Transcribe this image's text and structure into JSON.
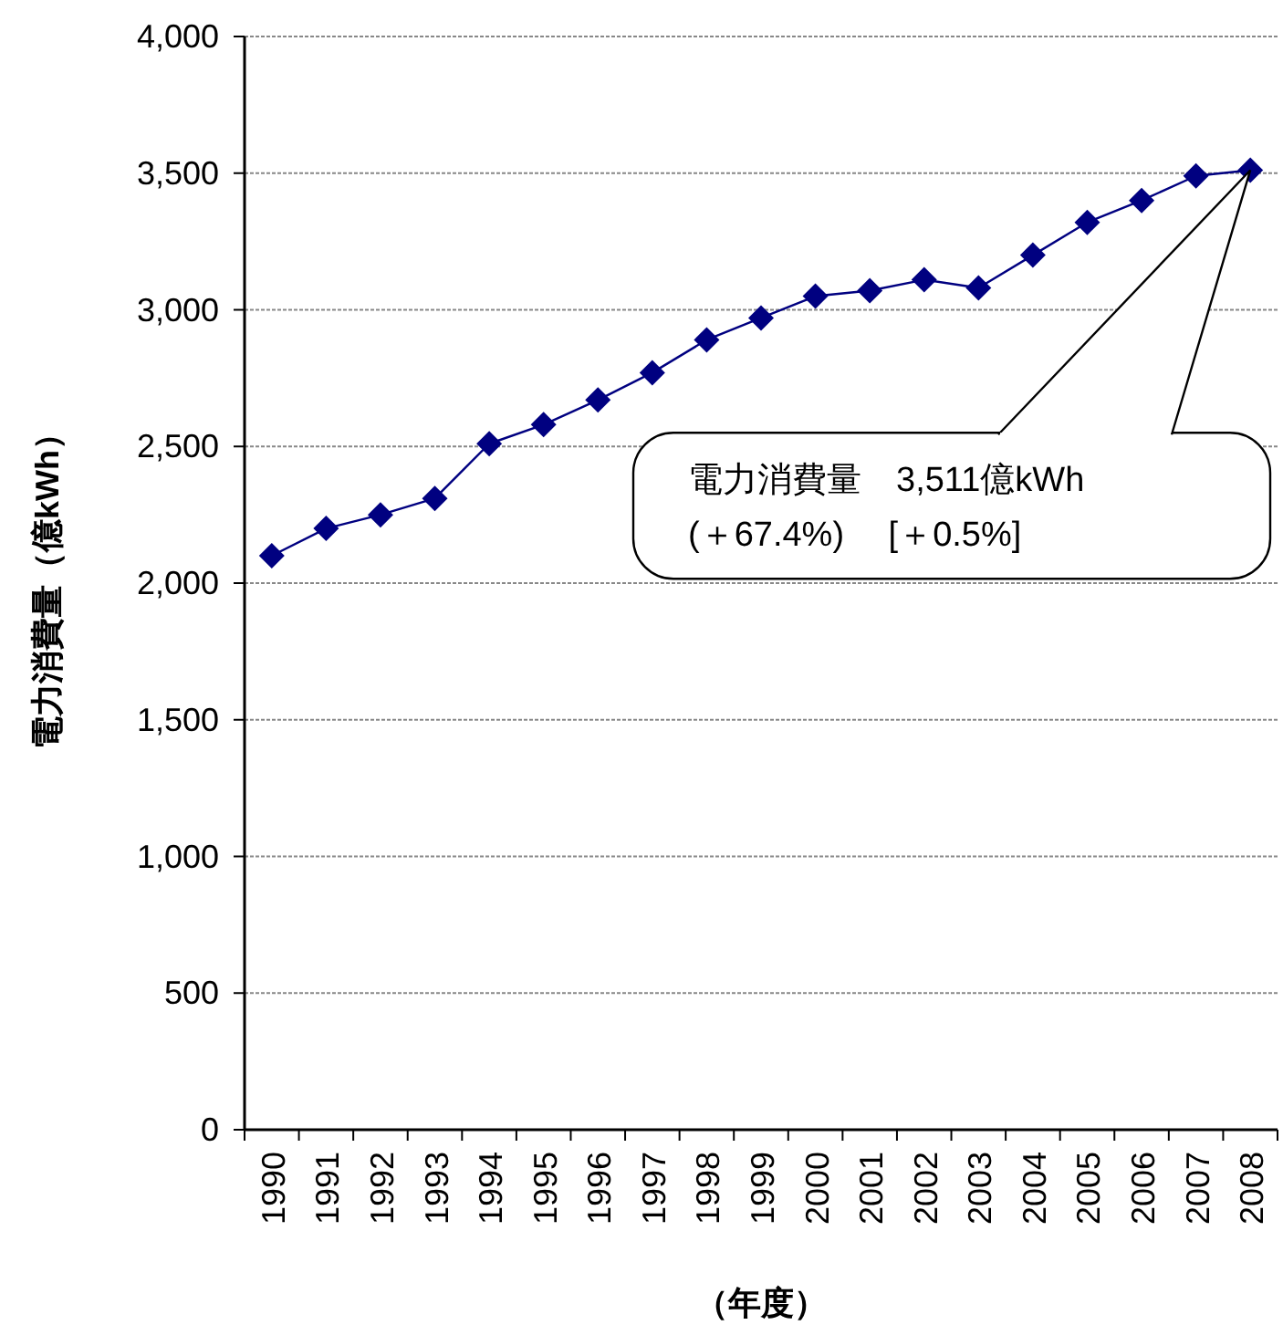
{
  "chart_data": {
    "type": "line",
    "ylabel": "電力消費量（億kWh）",
    "xlabel": "（年度）",
    "categories": [
      "1990",
      "1991",
      "1992",
      "1993",
      "1994",
      "1995",
      "1996",
      "1997",
      "1998",
      "1999",
      "2000",
      "2001",
      "2002",
      "2003",
      "2004",
      "2005",
      "2006",
      "2007",
      "2008"
    ],
    "series": [
      {
        "color": "#000080",
        "values": [
          2100,
          2200,
          2250,
          2310,
          2510,
          2580,
          2670,
          2770,
          2890,
          2970,
          3050,
          3070,
          3110,
          3080,
          3200,
          3320,
          3400,
          3490,
          3511
        ]
      }
    ],
    "ylim": [
      0,
      4000
    ],
    "yticks": [
      {
        "value": 0,
        "label": "0"
      },
      {
        "value": 500,
        "label": "500"
      },
      {
        "value": 1000,
        "label": "1,000"
      },
      {
        "value": 1500,
        "label": "1,500"
      },
      {
        "value": 2000,
        "label": "2,000"
      },
      {
        "value": 2500,
        "label": "2,500"
      },
      {
        "value": 3000,
        "label": "3,000"
      },
      {
        "value": 3500,
        "label": "3,500"
      },
      {
        "value": 4000,
        "label": "4,000"
      }
    ],
    "grid": "y",
    "marker": "diamond",
    "line_style": "solid",
    "annotations": [
      "電力消費量　3,511億kWh\n(＋67.4%)　 [＋0.5%]"
    ]
  }
}
